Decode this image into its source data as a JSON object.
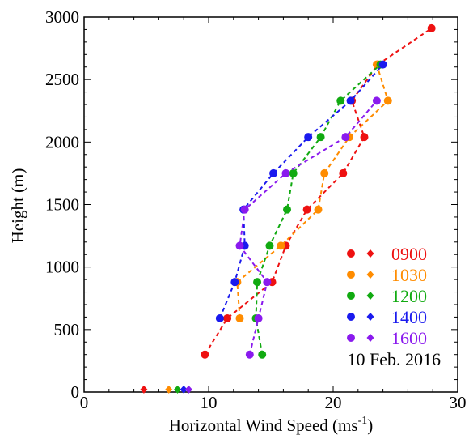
{
  "chart_data": {
    "type": "scatter",
    "xlabel": "Horizontal Wind Speed (ms",
    "xlabel_sup": "-1",
    "xlabel_close": ")",
    "ylabel": "Height (m)",
    "xlim": [
      0,
      30
    ],
    "ylim": [
      0,
      3000
    ],
    "xticks": [
      0,
      10,
      20,
      30
    ],
    "yticks": [
      0,
      500,
      1000,
      1500,
      2000,
      2500,
      3000
    ],
    "grid": false,
    "legend_position": "bottom-right",
    "annotation": "10 Feb. 2016",
    "series": [
      {
        "name": "0900",
        "color": "#ee1111",
        "profile": [
          [
            9.7,
            300
          ],
          [
            11.5,
            590
          ],
          [
            15.1,
            880
          ],
          [
            16.2,
            1170
          ],
          [
            17.9,
            1460
          ],
          [
            20.8,
            1750
          ],
          [
            22.5,
            2040
          ],
          [
            21.5,
            2330
          ],
          [
            23.6,
            2620
          ],
          [
            27.9,
            2910
          ]
        ],
        "surface": [
          4.8,
          20
        ]
      },
      {
        "name": "1030",
        "color": "#ff8c00",
        "profile": [
          [
            12.5,
            590
          ],
          [
            12.3,
            880
          ],
          [
            15.8,
            1170
          ],
          [
            18.8,
            1460
          ],
          [
            19.3,
            1750
          ],
          [
            21.3,
            2040
          ],
          [
            24.4,
            2330
          ],
          [
            23.5,
            2620
          ]
        ],
        "surface": [
          6.8,
          20
        ]
      },
      {
        "name": "1200",
        "color": "#11aa11",
        "profile": [
          [
            14.3,
            300
          ],
          [
            13.8,
            590
          ],
          [
            13.9,
            880
          ],
          [
            14.9,
            1170
          ],
          [
            16.3,
            1460
          ],
          [
            16.8,
            1750
          ],
          [
            19.0,
            2040
          ],
          [
            20.6,
            2330
          ],
          [
            23.8,
            2620
          ]
        ],
        "surface": [
          7.5,
          20
        ]
      },
      {
        "name": "1400",
        "color": "#1a1aee",
        "profile": [
          [
            10.9,
            590
          ],
          [
            12.1,
            880
          ],
          [
            12.9,
            1170
          ],
          [
            12.8,
            1460
          ],
          [
            15.2,
            1750
          ],
          [
            18.0,
            2040
          ],
          [
            21.4,
            2330
          ],
          [
            24.0,
            2620
          ]
        ],
        "surface": [
          8.0,
          20
        ]
      },
      {
        "name": "1600",
        "color": "#8a1aee",
        "profile": [
          [
            13.3,
            300
          ],
          [
            14.0,
            590
          ],
          [
            14.7,
            880
          ],
          [
            12.5,
            1170
          ],
          [
            12.9,
            1460
          ],
          [
            16.2,
            1750
          ],
          [
            21.0,
            2040
          ],
          [
            23.5,
            2330
          ]
        ],
        "surface": [
          8.4,
          20
        ]
      }
    ]
  }
}
